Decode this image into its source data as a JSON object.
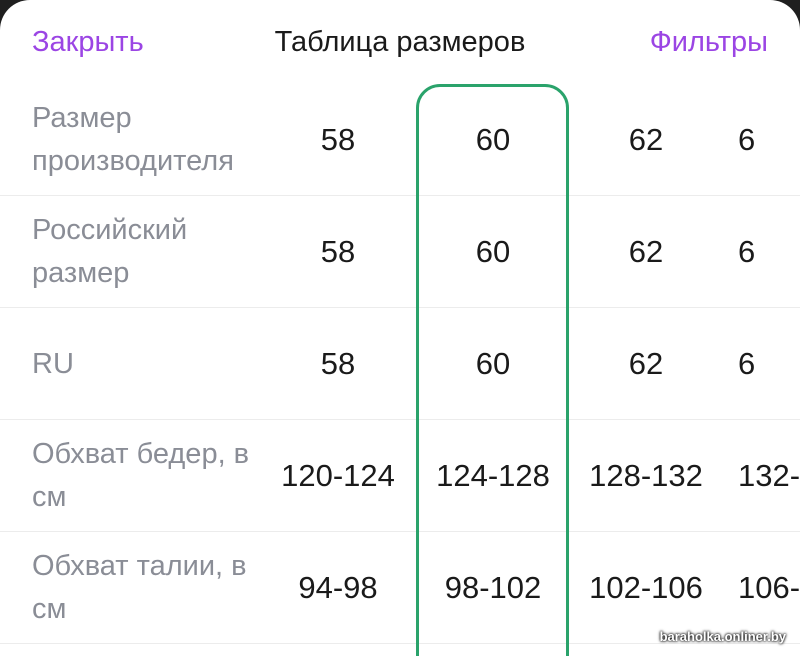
{
  "header": {
    "close_label": "Закрыть",
    "title": "Таблица размеров",
    "filters_label": "Фильтры"
  },
  "rows": [
    {
      "label": "Размер производителя",
      "values": [
        "58",
        "60",
        "62",
        "6"
      ]
    },
    {
      "label": "Российский размер",
      "values": [
        "58",
        "60",
        "62",
        "6"
      ]
    },
    {
      "label": "RU",
      "values": [
        "58",
        "60",
        "62",
        "6"
      ]
    },
    {
      "label": "Обхват бедер, в см",
      "values": [
        "120-124",
        "124-128",
        "128-132",
        "132-"
      ]
    },
    {
      "label": "Обхват талии, в см",
      "values": [
        "94-98",
        "98-102",
        "102-106",
        "106-"
      ]
    }
  ],
  "selected_column": "60",
  "colors": {
    "accent": "#9b45e4",
    "highlight": "#2aa36b",
    "label_text": "#8a8d96"
  },
  "watermark": "baraholka.onliner.by"
}
